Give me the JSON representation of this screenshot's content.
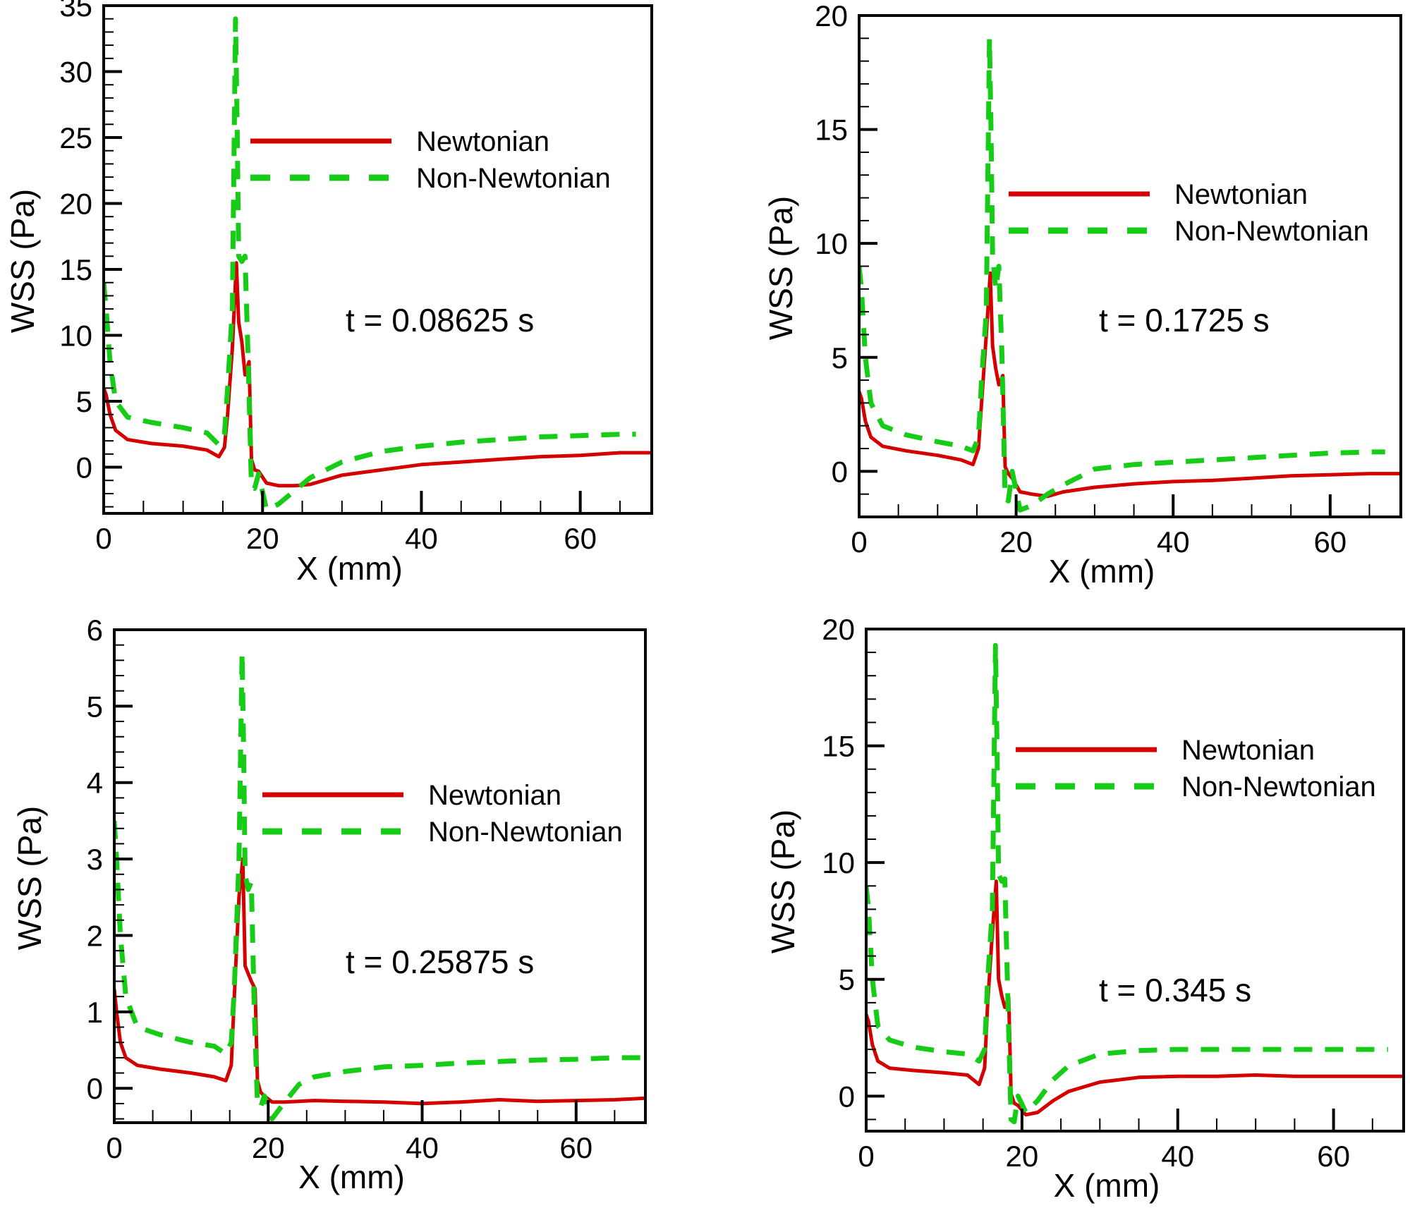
{
  "figure": {
    "description": "Wall shear stress along X for Newtonian vs Non-Newtonian blood at four time instants",
    "series_colors": {
      "Newtonian": "#d40000",
      "Non-Newtonian": "#16cc16"
    }
  },
  "chart_data": [
    {
      "type": "line",
      "title": "",
      "annotation": "t = 0.08625 s",
      "xlabel": "X (mm)",
      "ylabel": "WSS (Pa)",
      "xlim": [
        0,
        69
      ],
      "ylim": [
        -3.5,
        35
      ],
      "xticks": [
        0,
        20,
        40,
        60
      ],
      "yticks": [
        0,
        5,
        10,
        15,
        20,
        25,
        30,
        35
      ],
      "grid": false,
      "legend": {
        "position": "top-center",
        "entries": [
          "Newtonian",
          "Non-Newtonian"
        ]
      },
      "series": [
        {
          "name": "Newtonian",
          "style": "solid",
          "color": "#d40000",
          "x": [
            0,
            0.3,
            0.8,
            1.5,
            3,
            6,
            10,
            13,
            14.5,
            15.2,
            15.6,
            16.2,
            16.7,
            17.0,
            17.4,
            17.8,
            18.3,
            18.6,
            19.0,
            19.5,
            20.5,
            22,
            24,
            26,
            30,
            35,
            40,
            45,
            50,
            55,
            60,
            65,
            69
          ],
          "y": [
            6,
            5.5,
            4,
            2.8,
            2.1,
            1.8,
            1.6,
            1.3,
            0.8,
            1.5,
            4,
            9,
            15.5,
            11,
            9.5,
            7,
            8,
            0.6,
            -0.2,
            -0.3,
            -1.2,
            -1.4,
            -1.4,
            -1.3,
            -0.6,
            -0.2,
            0.2,
            0.4,
            0.6,
            0.8,
            0.9,
            1.1,
            1.1
          ]
        },
        {
          "name": "Non-Newtonian",
          "style": "dashed",
          "color": "#16cc16",
          "x": [
            0,
            0.3,
            0.8,
            1.5,
            3,
            6,
            10,
            13,
            14.5,
            15.2,
            15.6,
            16.2,
            16.6,
            16.8,
            17.0,
            17.4,
            17.8,
            18.2,
            18.6,
            19.0,
            19.5,
            20.5,
            22,
            24,
            26,
            30,
            35,
            40,
            45,
            50,
            55,
            60,
            65,
            67
          ],
          "y": [
            14,
            12,
            8,
            5,
            3.8,
            3.4,
            3.0,
            2.6,
            1.7,
            2.5,
            6,
            12,
            34,
            26,
            16,
            15.6,
            16,
            8,
            -1.5,
            -1.6,
            -0.5,
            -3.2,
            -2.8,
            -1.8,
            -0.8,
            0.4,
            1.2,
            1.6,
            1.9,
            2.1,
            2.3,
            2.4,
            2.5,
            2.5
          ]
        }
      ]
    },
    {
      "type": "line",
      "title": "",
      "annotation": "t = 0.1725 s",
      "xlabel": "X (mm)",
      "ylabel": "WSS (Pa)",
      "xlim": [
        0,
        69
      ],
      "ylim": [
        -2,
        20
      ],
      "xticks": [
        0,
        20,
        40,
        60
      ],
      "yticks": [
        0,
        5,
        10,
        15,
        20
      ],
      "grid": false,
      "legend": {
        "position": "top-right",
        "entries": [
          "Newtonian",
          "Non-Newtonian"
        ]
      },
      "series": [
        {
          "name": "Newtonian",
          "style": "solid",
          "color": "#d40000",
          "x": [
            0,
            0.3,
            0.8,
            1.5,
            3,
            6,
            10,
            13,
            14.5,
            15.2,
            15.6,
            16.2,
            16.7,
            17.0,
            17.4,
            17.8,
            18.3,
            18.6,
            19.0,
            19.5,
            20.5,
            22,
            24,
            26,
            30,
            35,
            40,
            45,
            50,
            55,
            60,
            65,
            69
          ],
          "y": [
            3.5,
            3.2,
            2.2,
            1.5,
            1.1,
            0.9,
            0.7,
            0.5,
            0.3,
            1.0,
            3,
            6,
            8.7,
            5.5,
            4.5,
            3.8,
            4.2,
            0.2,
            -0.1,
            -0.3,
            -0.9,
            -1.0,
            -1.1,
            -0.9,
            -0.7,
            -0.55,
            -0.45,
            -0.4,
            -0.3,
            -0.2,
            -0.15,
            -0.1,
            -0.1
          ]
        },
        {
          "name": "Non-Newtonian",
          "style": "dashed",
          "color": "#16cc16",
          "x": [
            0,
            0.3,
            0.8,
            1.5,
            3,
            6,
            10,
            13,
            14.5,
            15.2,
            15.6,
            16.2,
            16.6,
            16.8,
            17.0,
            17.4,
            17.8,
            18.2,
            18.6,
            19.0,
            19.5,
            20.5,
            22,
            24,
            26,
            30,
            35,
            40,
            45,
            50,
            55,
            60,
            65,
            67
          ],
          "y": [
            9,
            8,
            5,
            3.0,
            2.0,
            1.6,
            1.3,
            1.1,
            0.9,
            1.5,
            4,
            7,
            19,
            15,
            9.5,
            8,
            9,
            5,
            -1.2,
            -1.3,
            0,
            -1.7,
            -1.5,
            -1.0,
            -0.6,
            0.1,
            0.3,
            0.4,
            0.5,
            0.6,
            0.7,
            0.8,
            0.85,
            0.85
          ]
        }
      ]
    },
    {
      "type": "line",
      "title": "",
      "annotation": "t = 0.25875 s",
      "xlabel": "X (mm)",
      "ylabel": "WSS (Pa)",
      "xlim": [
        0,
        69
      ],
      "ylim": [
        -0.45,
        6
      ],
      "xticks": [
        0,
        20,
        40,
        60
      ],
      "yticks": [
        0,
        1,
        2,
        3,
        4,
        5,
        6
      ],
      "grid": false,
      "legend": {
        "position": "top-right",
        "entries": [
          "Newtonian",
          "Non-Newtonian"
        ]
      },
      "series": [
        {
          "name": "Newtonian",
          "style": "solid",
          "color": "#d40000",
          "x": [
            0,
            0.3,
            0.8,
            1.5,
            3,
            6,
            10,
            13,
            14.5,
            15.2,
            15.6,
            16.2,
            16.7,
            17.0,
            17.4,
            17.8,
            18.3,
            18.6,
            19.0,
            19.5,
            20.5,
            22,
            24,
            26,
            30,
            35,
            40,
            45,
            50,
            55,
            60,
            65,
            69
          ],
          "y": [
            1.3,
            1.0,
            0.6,
            0.4,
            0.3,
            0.25,
            0.2,
            0.15,
            0.1,
            0.3,
            1.2,
            2.5,
            3.0,
            1.6,
            1.5,
            1.4,
            1.3,
            0.1,
            -0.05,
            -0.1,
            -0.18,
            -0.18,
            -0.17,
            -0.16,
            -0.17,
            -0.18,
            -0.2,
            -0.18,
            -0.15,
            -0.17,
            -0.16,
            -0.15,
            -0.13
          ]
        },
        {
          "name": "Non-Newtonian",
          "style": "dashed",
          "color": "#16cc16",
          "x": [
            0,
            0.3,
            0.8,
            1.5,
            3,
            6,
            10,
            13,
            14.5,
            15.2,
            15.6,
            16.2,
            16.6,
            16.8,
            17.0,
            17.4,
            17.8,
            18.2,
            18.6,
            19.0,
            19.5,
            20.5,
            22,
            24,
            26,
            30,
            35,
            40,
            45,
            50,
            55,
            60,
            65,
            69
          ],
          "y": [
            3.5,
            3.0,
            2.0,
            1.2,
            0.8,
            0.7,
            0.6,
            0.55,
            0.45,
            0.6,
            1.3,
            3.0,
            5.7,
            4.5,
            2.8,
            2.6,
            2.7,
            1.0,
            -0.2,
            -0.25,
            -0.1,
            -0.4,
            -0.2,
            0.05,
            0.15,
            0.22,
            0.28,
            0.3,
            0.33,
            0.35,
            0.37,
            0.38,
            0.4,
            0.4
          ]
        }
      ]
    },
    {
      "type": "line",
      "title": "",
      "annotation": "t = 0.345 s",
      "xlabel": "X (mm)",
      "ylabel": "WSS (Pa)",
      "xlim": [
        0,
        69
      ],
      "ylim": [
        -1.5,
        20
      ],
      "xticks": [
        0,
        20,
        40,
        60
      ],
      "yticks": [
        0,
        5,
        10,
        15,
        20
      ],
      "grid": false,
      "legend": {
        "position": "top-right",
        "entries": [
          "Newtonian",
          "Non-Newtonian"
        ]
      },
      "series": [
        {
          "name": "Newtonian",
          "style": "solid",
          "color": "#d40000",
          "x": [
            0,
            0.3,
            0.8,
            1.5,
            3,
            6,
            10,
            13,
            14.5,
            15.2,
            15.6,
            16.2,
            16.7,
            17.0,
            17.4,
            17.8,
            18.3,
            18.6,
            19.0,
            19.5,
            20.5,
            22,
            24,
            26,
            30,
            35,
            40,
            45,
            50,
            55,
            60,
            65,
            69
          ],
          "y": [
            3.5,
            3.2,
            2.2,
            1.5,
            1.2,
            1.1,
            1.0,
            0.9,
            0.5,
            1.2,
            4,
            7,
            9.2,
            5,
            4.3,
            3.8,
            4.2,
            0.1,
            -0.3,
            -0.4,
            -0.8,
            -0.7,
            -0.2,
            0.2,
            0.6,
            0.8,
            0.85,
            0.85,
            0.9,
            0.85,
            0.85,
            0.85,
            0.85
          ]
        },
        {
          "name": "Non-Newtonian",
          "style": "dashed",
          "color": "#16cc16",
          "x": [
            0,
            0.3,
            0.8,
            1.5,
            3,
            6,
            10,
            13,
            14.5,
            15.2,
            15.6,
            16.2,
            16.6,
            16.8,
            17.0,
            17.4,
            17.8,
            18.2,
            18.6,
            19.0,
            19.5,
            20.5,
            22,
            24,
            26,
            30,
            35,
            40,
            45,
            50,
            55,
            60,
            65,
            67
          ],
          "y": [
            9,
            8,
            5,
            3.0,
            2.4,
            2.1,
            1.9,
            1.8,
            1.5,
            2.0,
            5,
            8,
            19.3,
            15,
            9.5,
            9.2,
            9.3,
            4,
            -1.0,
            -1.1,
            0,
            -0.7,
            -0.2,
            0.7,
            1.3,
            1.8,
            1.95,
            2.0,
            2.0,
            2.0,
            2.0,
            2.0,
            2.0,
            2.0
          ]
        }
      ]
    }
  ]
}
